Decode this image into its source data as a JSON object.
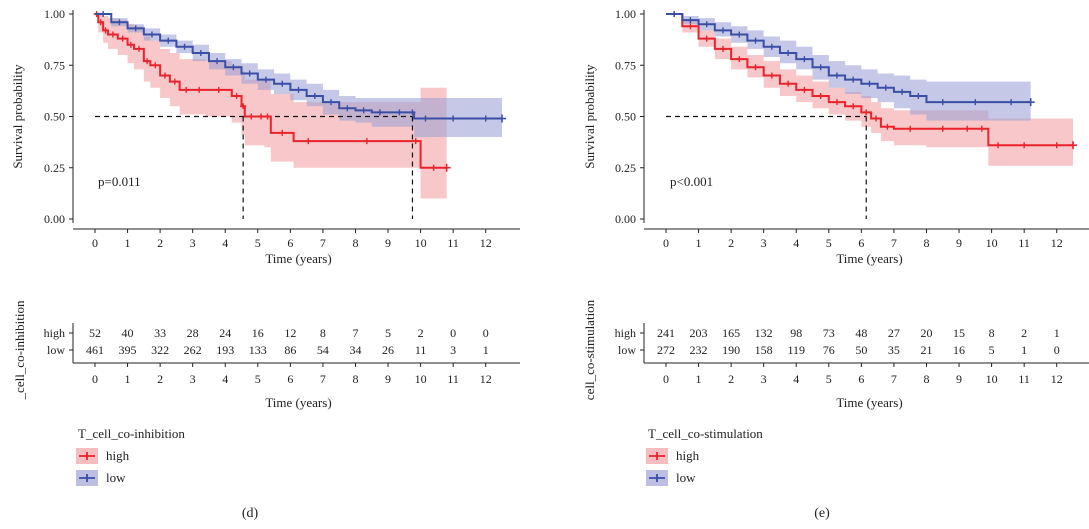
{
  "colors": {
    "high": "#e8232b",
    "low": "#3b4ea6",
    "high_band": "#f4a1a5",
    "low_band": "#9fa3d6"
  },
  "chart_data": [
    {
      "panel_label": "(d)",
      "type": "line",
      "subtype": "kaplan-meier",
      "ylabel": "Survival probability",
      "xlabel": "Time (years)",
      "xlim": [
        0,
        12.5
      ],
      "ylim": [
        0,
        1
      ],
      "x_ticks": [
        "0",
        "1",
        "2",
        "3",
        "4",
        "5",
        "6",
        "7",
        "8",
        "9",
        "10",
        "11",
        "12"
      ],
      "y_ticks": [
        "0.00",
        "0.25",
        "0.50",
        "0.75",
        "1.00"
      ],
      "pvalue": "p=0.011",
      "median_lines": [
        4.55,
        9.75
      ],
      "legend_title": "T_cell_co-inhibition",
      "risk_table_ylabel": "_cell_co-inhibition",
      "risk_table_xlabel": "Time (years)",
      "series": [
        {
          "name": "high",
          "x": [
            0,
            0.1,
            0.25,
            0.4,
            0.7,
            1.0,
            1.2,
            1.5,
            1.7,
            2.0,
            2.3,
            2.6,
            3.0,
            3.4,
            4.2,
            4.5,
            4.6,
            5.0,
            5.2,
            5.4,
            6.1,
            7.0,
            9.7,
            10.0,
            10.8
          ],
          "y": [
            1.0,
            0.96,
            0.92,
            0.9,
            0.88,
            0.85,
            0.83,
            0.77,
            0.75,
            0.7,
            0.67,
            0.63,
            0.63,
            0.63,
            0.6,
            0.55,
            0.5,
            0.5,
            0.5,
            0.42,
            0.38,
            0.38,
            0.38,
            0.25,
            0.25
          ],
          "lower": [
            1.0,
            0.91,
            0.86,
            0.83,
            0.8,
            0.76,
            0.73,
            0.67,
            0.64,
            0.59,
            0.55,
            0.51,
            0.51,
            0.5,
            0.47,
            0.41,
            0.36,
            0.36,
            0.35,
            0.28,
            0.25,
            0.25,
            0.25,
            0.1,
            0.1
          ],
          "upper": [
            1.0,
            1.0,
            0.99,
            0.98,
            0.97,
            0.95,
            0.94,
            0.89,
            0.87,
            0.83,
            0.81,
            0.78,
            0.78,
            0.77,
            0.75,
            0.72,
            0.68,
            0.68,
            0.68,
            0.61,
            0.57,
            0.57,
            0.57,
            0.64,
            0.64
          ],
          "risk_table": [
            52,
            40,
            33,
            28,
            24,
            16,
            12,
            8,
            7,
            5,
            2,
            0,
            0
          ]
        },
        {
          "name": "low",
          "x": [
            0,
            0.5,
            1.0,
            1.5,
            2.0,
            2.5,
            3.0,
            3.5,
            4.0,
            4.5,
            5.0,
            5.5,
            6.0,
            6.5,
            7.0,
            7.5,
            8.0,
            8.5,
            9.0,
            9.7,
            9.8,
            10.5,
            11.5,
            12.5
          ],
          "y": [
            1.0,
            0.96,
            0.93,
            0.9,
            0.87,
            0.84,
            0.81,
            0.77,
            0.74,
            0.71,
            0.68,
            0.66,
            0.63,
            0.6,
            0.57,
            0.54,
            0.53,
            0.52,
            0.52,
            0.52,
            0.49,
            0.49,
            0.49,
            0.49
          ],
          "lower": [
            1.0,
            0.94,
            0.91,
            0.87,
            0.84,
            0.81,
            0.77,
            0.73,
            0.7,
            0.66,
            0.63,
            0.61,
            0.58,
            0.55,
            0.51,
            0.48,
            0.47,
            0.45,
            0.45,
            0.45,
            0.4,
            0.4,
            0.4,
            0.4
          ],
          "upper": [
            1.0,
            0.98,
            0.95,
            0.93,
            0.9,
            0.87,
            0.85,
            0.81,
            0.78,
            0.76,
            0.73,
            0.71,
            0.68,
            0.66,
            0.63,
            0.6,
            0.59,
            0.59,
            0.59,
            0.59,
            0.59,
            0.59,
            0.59,
            0.59
          ],
          "risk_table": [
            461,
            395,
            322,
            262,
            193,
            133,
            86,
            54,
            34,
            26,
            11,
            3,
            1
          ]
        }
      ]
    },
    {
      "panel_label": "(e)",
      "type": "line",
      "subtype": "kaplan-meier",
      "ylabel": "Survival probability",
      "xlabel": "Time (years)",
      "xlim": [
        0,
        12.5
      ],
      "ylim": [
        0,
        1
      ],
      "x_ticks": [
        "0",
        "1",
        "2",
        "3",
        "4",
        "5",
        "6",
        "7",
        "8",
        "9",
        "10",
        "11",
        "12"
      ],
      "y_ticks": [
        "0.00",
        "0.25",
        "0.50",
        "0.75",
        "1.00"
      ],
      "pvalue": "p<0.001",
      "median_lines": [
        6.15
      ],
      "legend_title": "T_cell_co-stimulation",
      "risk_table_ylabel": "cell_co-stimulation",
      "risk_table_xlabel": "Time (years)",
      "series": [
        {
          "name": "high",
          "x": [
            0,
            0.5,
            1.0,
            1.5,
            2.0,
            2.5,
            3.0,
            3.5,
            4.0,
            4.5,
            5.0,
            5.5,
            6.0,
            6.3,
            6.6,
            7.0,
            8.0,
            9.0,
            9.5,
            9.9,
            10.5,
            11.5,
            12.5
          ],
          "y": [
            1.0,
            0.94,
            0.88,
            0.83,
            0.78,
            0.74,
            0.7,
            0.66,
            0.63,
            0.6,
            0.57,
            0.55,
            0.52,
            0.49,
            0.45,
            0.44,
            0.44,
            0.44,
            0.44,
            0.36,
            0.36,
            0.36,
            0.36
          ],
          "lower": [
            1.0,
            0.91,
            0.84,
            0.78,
            0.73,
            0.69,
            0.64,
            0.6,
            0.57,
            0.54,
            0.51,
            0.48,
            0.45,
            0.42,
            0.38,
            0.36,
            0.35,
            0.35,
            0.35,
            0.26,
            0.26,
            0.26,
            0.26
          ],
          "upper": [
            1.0,
            0.97,
            0.92,
            0.88,
            0.84,
            0.8,
            0.77,
            0.73,
            0.7,
            0.67,
            0.64,
            0.62,
            0.6,
            0.57,
            0.54,
            0.53,
            0.53,
            0.53,
            0.53,
            0.49,
            0.49,
            0.49,
            0.49
          ],
          "risk_table": [
            241,
            203,
            165,
            132,
            98,
            73,
            48,
            27,
            20,
            15,
            8,
            2,
            1
          ]
        },
        {
          "name": "low",
          "x": [
            0,
            0.5,
            1.0,
            1.5,
            2.0,
            2.5,
            3.0,
            3.5,
            4.0,
            4.5,
            5.0,
            5.5,
            6.0,
            6.5,
            7.0,
            7.5,
            8.0,
            9.0,
            10.0,
            11.2
          ],
          "y": [
            1.0,
            0.97,
            0.95,
            0.92,
            0.9,
            0.87,
            0.84,
            0.81,
            0.78,
            0.74,
            0.7,
            0.68,
            0.66,
            0.64,
            0.62,
            0.6,
            0.57,
            0.57,
            0.57,
            0.57
          ],
          "lower": [
            1.0,
            0.95,
            0.92,
            0.89,
            0.86,
            0.83,
            0.79,
            0.76,
            0.73,
            0.68,
            0.64,
            0.61,
            0.59,
            0.57,
            0.54,
            0.51,
            0.48,
            0.48,
            0.48,
            0.48
          ],
          "upper": [
            1.0,
            0.99,
            0.98,
            0.96,
            0.94,
            0.92,
            0.89,
            0.87,
            0.84,
            0.8,
            0.77,
            0.75,
            0.73,
            0.71,
            0.7,
            0.68,
            0.67,
            0.67,
            0.67,
            0.67
          ],
          "risk_table": [
            272,
            232,
            190,
            158,
            119,
            76,
            50,
            35,
            21,
            16,
            5,
            1,
            0
          ]
        }
      ]
    }
  ]
}
